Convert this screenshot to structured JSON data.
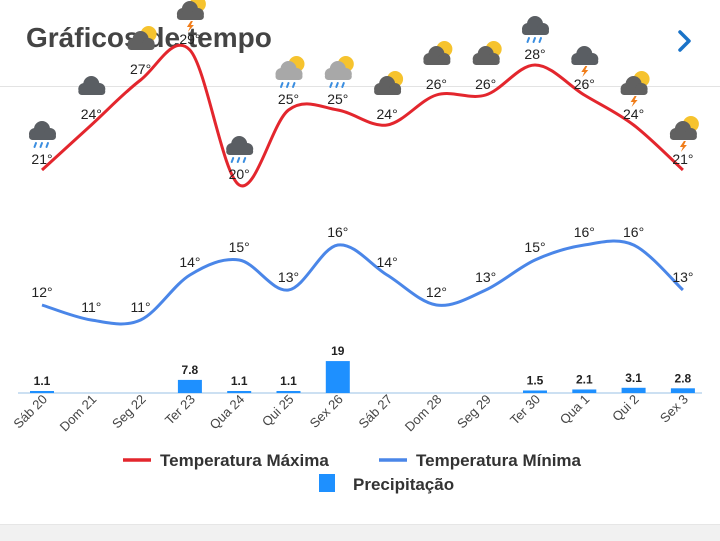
{
  "header": {
    "title": "Gráficos de tempo"
  },
  "chart_data": {
    "type": "line",
    "categories": [
      "Sáb 20",
      "Dom 21",
      "Seg 22",
      "Ter 23",
      "Qua 24",
      "Qui 25",
      "Sex 26",
      "Sáb 27",
      "Dom 28",
      "Seg 29",
      "Ter 30",
      "Qua 1",
      "Qui 2",
      "Sex 3"
    ],
    "series": [
      {
        "name": "Temperatura Máxima",
        "type": "line",
        "color": "#e3262d",
        "values": [
          21,
          24,
          27,
          29,
          20,
          25,
          25,
          24,
          26,
          26,
          28,
          26,
          24,
          21
        ]
      },
      {
        "name": "Temperatura Mínima",
        "type": "line",
        "color": "#4a86e8",
        "values": [
          12,
          11,
          11,
          14,
          15,
          13,
          16,
          14,
          12,
          13,
          15,
          16,
          16,
          13
        ]
      },
      {
        "name": "Precipitação",
        "type": "bar",
        "color": "#1e90ff",
        "values": [
          1.1,
          null,
          null,
          7.8,
          1.1,
          1.1,
          19,
          null,
          null,
          null,
          1.5,
          2.1,
          3.1,
          2.8
        ]
      }
    ],
    "precip_labels": [
      "1.1",
      "",
      "",
      "7.8",
      "1.1",
      "1.1",
      "19",
      "",
      "",
      "",
      "1.5",
      "2.1",
      "3.1",
      "2.8"
    ],
    "icons": [
      "cloud-rain-icon",
      "cloud-icon",
      "partly-cloudy-icon",
      "partly-cloudy-thunder-icon",
      "cloud-rain-icon",
      "partly-cloudy-rain-icon",
      "partly-cloudy-rain-icon",
      "partly-cloudy-icon",
      "partly-cloudy-icon",
      "partly-cloudy-icon",
      "cloud-rain-icon",
      "cloud-thunder-icon",
      "partly-cloudy-thunder-icon",
      "partly-cloudy-thunder-icon"
    ],
    "legend": {
      "position": "bottom"
    },
    "grid": false
  }
}
